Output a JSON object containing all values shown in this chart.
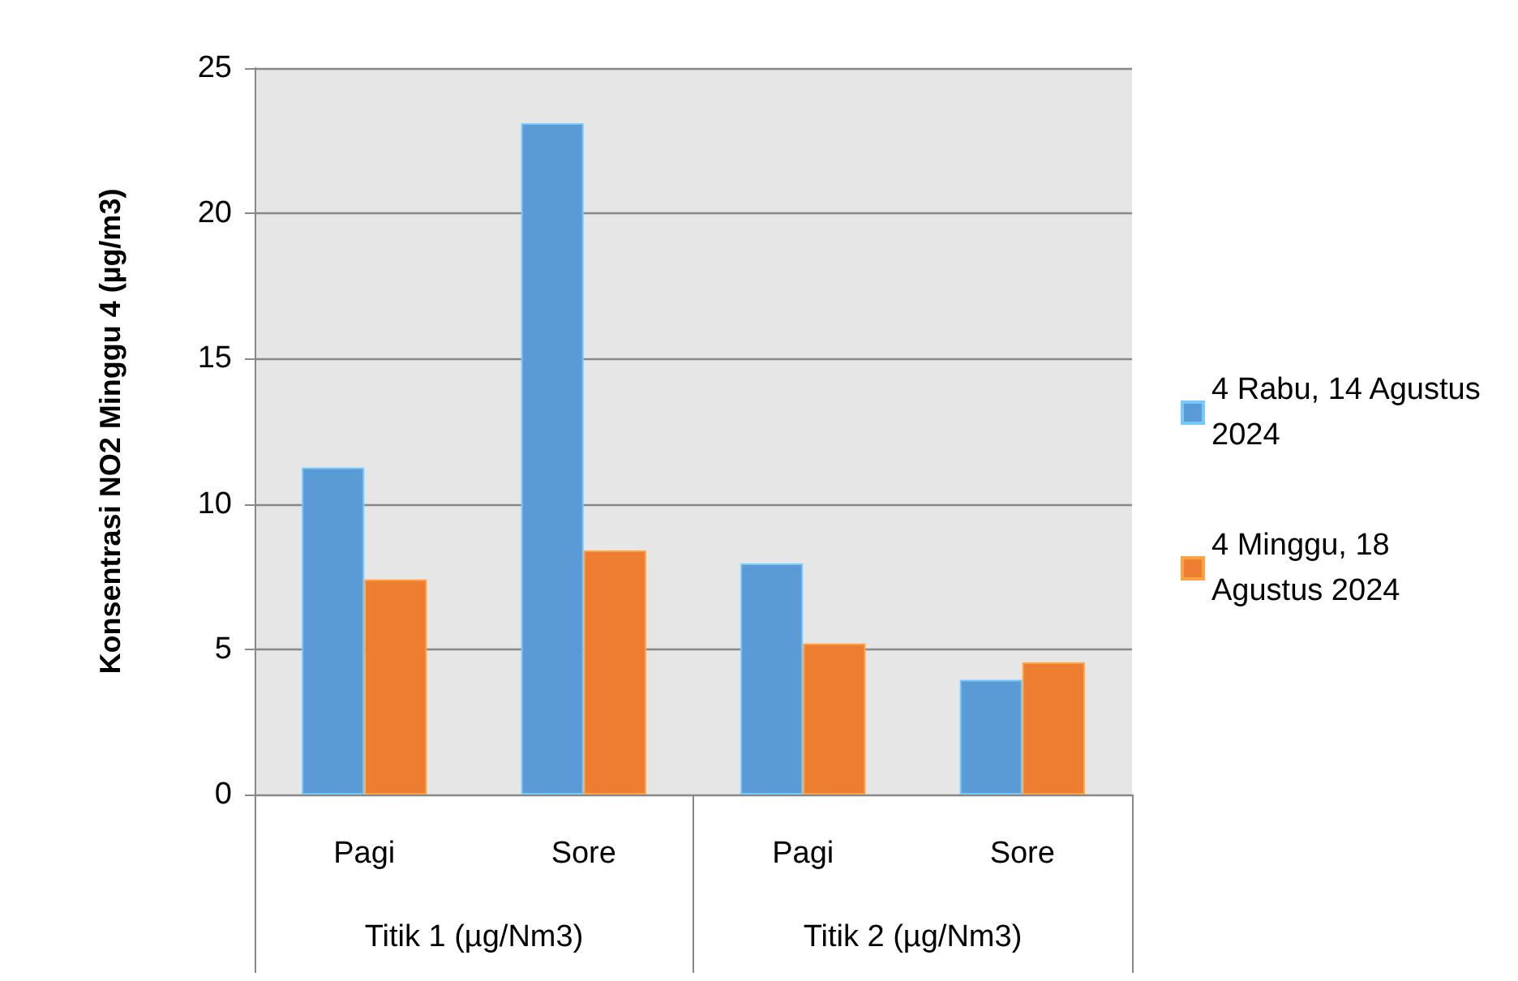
{
  "chart_data": {
    "type": "bar",
    "ylabel": "Konsentrasi NO2 Minggu 4 (µg/m3)",
    "categories": [
      "Pagi",
      "Sore",
      "Pagi",
      "Sore"
    ],
    "annotations": [
      "Titik 1 (µg/Nm3)",
      "Titik 2 (µg/Nm3)"
    ],
    "series": [
      {
        "name": "4 Rabu, 14 Agustus 2024",
        "color": "#5b9bd5",
        "values": [
          11.25,
          23.1,
          7.95,
          3.95
        ]
      },
      {
        "name": "4 Minggu, 18 Agustus 2024",
        "color": "#ed7d31",
        "values": [
          7.4,
          8.4,
          5.2,
          4.55
        ]
      }
    ],
    "ylim": [
      0,
      25
    ],
    "yticks": [
      0,
      5,
      10,
      15,
      20,
      25
    ],
    "grid": "y",
    "legend": "right"
  }
}
